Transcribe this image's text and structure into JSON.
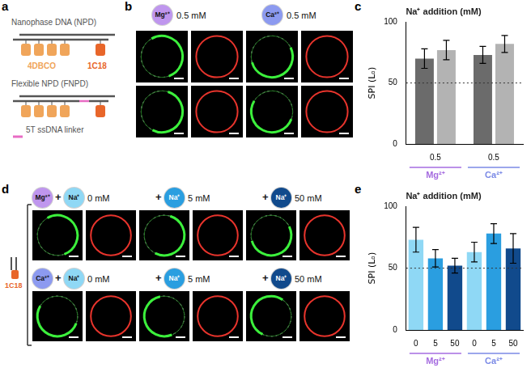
{
  "panel_labels": [
    "a",
    "b",
    "c",
    "d",
    "e"
  ],
  "schematic": {
    "npd": {
      "title": "Nanophase DNA (NPD)",
      "anchor_label": "4DBCO",
      "anchor_color": "#f0a55a",
      "lipid_label": "1C18",
      "lipid_color": "#e8662a"
    },
    "fnpd": {
      "title": "Flexible NPD (FNPD)",
      "linker_label": "5T ssDNA linker",
      "linker_color": "#e86cc4"
    }
  },
  "micrographs": {
    "b": {
      "columns": [
        {
          "ion": "Mg²⁺",
          "color": "#bf96ee",
          "conc": "0.5 mM"
        },
        {
          "ion": "Ca²⁺",
          "color": "#8c9af0",
          "conc": "0.5 mM"
        }
      ]
    },
    "d": {
      "side_label": "1C18",
      "side_color": "#e8662a",
      "plus": "+",
      "rows": [
        {
          "ion": "Mg²⁺",
          "color": "#bf96ee",
          "additions": [
            {
              "ion": "Na⁺",
              "color": "#8fd8f5",
              "conc": "0 mM"
            },
            {
              "ion": "Na⁺",
              "color": "#2a9ee0",
              "conc": "5 mM"
            },
            {
              "ion": "Na⁺",
              "color": "#114a8c",
              "conc": "50 mM"
            }
          ]
        },
        {
          "ion": "Ca²⁺",
          "color": "#8c9af0",
          "additions": [
            {
              "ion": "Na⁺",
              "color": "#8fd8f5",
              "conc": "0 mM"
            },
            {
              "ion": "Na⁺",
              "color": "#2a9ee0",
              "conc": "5 mM"
            },
            {
              "ion": "Na⁺",
              "color": "#114a8c",
              "conc": "50 mM"
            }
          ]
        }
      ]
    }
  },
  "chart_data": [
    {
      "type": "bar",
      "title": "Na⁺ addition (mM)",
      "ylabel": "SPI (Lₒ)",
      "categories": [
        "0.5",
        "0.5"
      ],
      "groups": [
        {
          "name": "Mg²⁺",
          "color": "#a66de0",
          "categories": [
            "0.5"
          ]
        },
        {
          "name": "Ca²⁺",
          "color": "#7b8ae6",
          "categories": [
            "0.5"
          ]
        }
      ],
      "series": [
        {
          "color": "#6b6b6b",
          "values": [
            70,
            73
          ],
          "errors": [
            8,
            7
          ]
        },
        {
          "color": "#b3b3b3",
          "values": [
            77,
            82
          ],
          "errors": [
            8,
            7
          ]
        }
      ],
      "reference_y": 50,
      "ylim": [
        0,
        100
      ],
      "yticks": [
        0,
        50,
        100
      ],
      "grid": false
    },
    {
      "type": "bar",
      "title": "Na⁺ addition (mM)",
      "ylabel": "SPI (Lₒ)",
      "categories": [
        "0",
        "5",
        "50",
        "0",
        "5",
        "50"
      ],
      "groups": [
        {
          "name": "Mg²⁺",
          "color": "#a66de0",
          "categories": [
            "0",
            "5",
            "50"
          ]
        },
        {
          "name": "Ca²⁺",
          "color": "#7b8ae6",
          "categories": [
            "0",
            "5",
            "50"
          ]
        }
      ],
      "values": [
        73,
        58,
        52,
        63,
        78,
        66
      ],
      "errors": [
        10,
        7,
        6,
        8,
        8,
        12
      ],
      "colors": [
        "#8fd8f5",
        "#2a9ee0",
        "#114a8c",
        "#8fd8f5",
        "#2a9ee0",
        "#114a8c"
      ],
      "reference_y": 50,
      "ylim": [
        0,
        100
      ],
      "yticks": [
        0,
        50,
        100
      ],
      "grid": false
    }
  ]
}
